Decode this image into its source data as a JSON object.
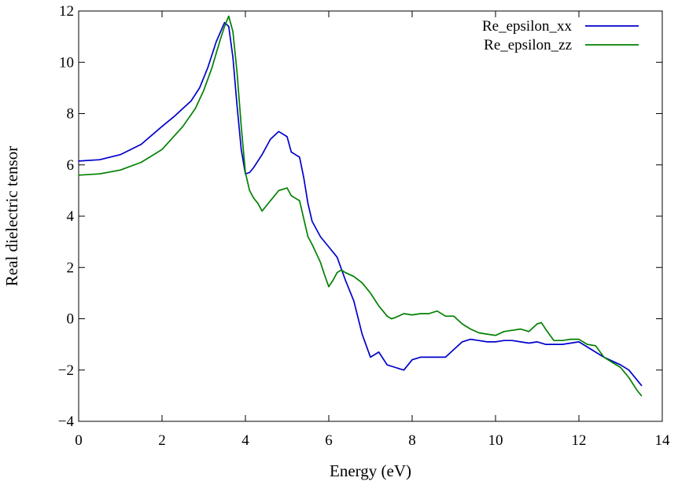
{
  "chart_data": {
    "type": "line",
    "title": "",
    "xlabel": "Energy (eV)",
    "ylabel": "Real dielectric tensor",
    "xlim": [
      0,
      14
    ],
    "ylim": [
      -4,
      12
    ],
    "xticks": [
      0,
      2,
      4,
      6,
      8,
      10,
      12,
      14
    ],
    "yticks": [
      -4,
      -2,
      0,
      2,
      4,
      6,
      8,
      10,
      12
    ],
    "ytick_labels": [
      "−4",
      "−2",
      "0",
      "2",
      "4",
      "6",
      "8",
      "10",
      "12"
    ],
    "grid": false,
    "legend_position": "top-right",
    "series": [
      {
        "name": "Re_epsilon_xx",
        "color": "#0000cc",
        "x": [
          0,
          0.5,
          1.0,
          1.5,
          2.0,
          2.3,
          2.5,
          2.7,
          2.9,
          3.1,
          3.3,
          3.5,
          3.6,
          3.7,
          3.8,
          3.9,
          4.0,
          4.1,
          4.2,
          4.4,
          4.6,
          4.8,
          5.0,
          5.1,
          5.2,
          5.3,
          5.4,
          5.5,
          5.6,
          5.8,
          6.0,
          6.2,
          6.4,
          6.6,
          6.8,
          7.0,
          7.2,
          7.4,
          7.6,
          7.8,
          8.0,
          8.2,
          8.4,
          8.6,
          8.8,
          9.0,
          9.2,
          9.4,
          9.6,
          9.8,
          10.0,
          10.2,
          10.4,
          10.6,
          10.8,
          11.0,
          11.2,
          11.4,
          11.6,
          11.8,
          12.0,
          12.2,
          12.4,
          12.6,
          12.8,
          13.0,
          13.2,
          13.4,
          13.5
        ],
        "y": [
          6.15,
          6.2,
          6.4,
          6.8,
          7.5,
          7.9,
          8.2,
          8.5,
          9.0,
          9.8,
          10.8,
          11.55,
          11.4,
          10.2,
          8.3,
          6.6,
          5.65,
          5.7,
          5.9,
          6.4,
          7.0,
          7.3,
          7.1,
          6.5,
          6.4,
          6.3,
          5.5,
          4.5,
          3.8,
          3.2,
          2.8,
          2.4,
          1.5,
          0.7,
          -0.6,
          -1.5,
          -1.3,
          -1.8,
          -1.9,
          -2.0,
          -1.6,
          -1.5,
          -1.5,
          -1.5,
          -1.5,
          -1.2,
          -0.9,
          -0.8,
          -0.85,
          -0.9,
          -0.9,
          -0.85,
          -0.85,
          -0.9,
          -0.95,
          -0.9,
          -1.0,
          -1.0,
          -1.0,
          -0.95,
          -0.9,
          -1.1,
          -1.3,
          -1.5,
          -1.65,
          -1.8,
          -2.0,
          -2.4,
          -2.6
        ]
      },
      {
        "name": "Re_epsilon_zz",
        "color": "#008000",
        "x": [
          0,
          0.5,
          1.0,
          1.5,
          2.0,
          2.5,
          2.8,
          3.0,
          3.2,
          3.4,
          3.5,
          3.6,
          3.7,
          3.8,
          3.9,
          4.0,
          4.1,
          4.2,
          4.3,
          4.4,
          4.6,
          4.8,
          5.0,
          5.1,
          5.2,
          5.3,
          5.4,
          5.5,
          5.6,
          5.8,
          5.9,
          6.0,
          6.1,
          6.2,
          6.3,
          6.4,
          6.6,
          6.8,
          7.0,
          7.2,
          7.4,
          7.5,
          7.6,
          7.8,
          8.0,
          8.2,
          8.4,
          8.6,
          8.8,
          9.0,
          9.2,
          9.4,
          9.6,
          9.8,
          10.0,
          10.2,
          10.4,
          10.6,
          10.8,
          11.0,
          11.1,
          11.2,
          11.4,
          11.6,
          11.8,
          12.0,
          12.2,
          12.4,
          12.6,
          12.8,
          13.0,
          13.2,
          13.4,
          13.5
        ],
        "y": [
          5.6,
          5.65,
          5.8,
          6.1,
          6.6,
          7.5,
          8.2,
          8.9,
          9.8,
          10.9,
          11.4,
          11.8,
          11.2,
          9.6,
          7.5,
          5.7,
          5.0,
          4.7,
          4.5,
          4.2,
          4.6,
          5.0,
          5.1,
          4.8,
          4.7,
          4.6,
          3.9,
          3.2,
          2.9,
          2.2,
          1.7,
          1.25,
          1.5,
          1.8,
          1.9,
          1.8,
          1.65,
          1.4,
          1.0,
          0.5,
          0.1,
          0.0,
          0.05,
          0.2,
          0.15,
          0.2,
          0.2,
          0.3,
          0.1,
          0.1,
          -0.2,
          -0.4,
          -0.55,
          -0.6,
          -0.65,
          -0.5,
          -0.45,
          -0.4,
          -0.5,
          -0.2,
          -0.15,
          -0.4,
          -0.85,
          -0.85,
          -0.8,
          -0.8,
          -1.0,
          -1.05,
          -1.5,
          -1.7,
          -1.9,
          -2.3,
          -2.8,
          -3.0
        ]
      }
    ]
  }
}
